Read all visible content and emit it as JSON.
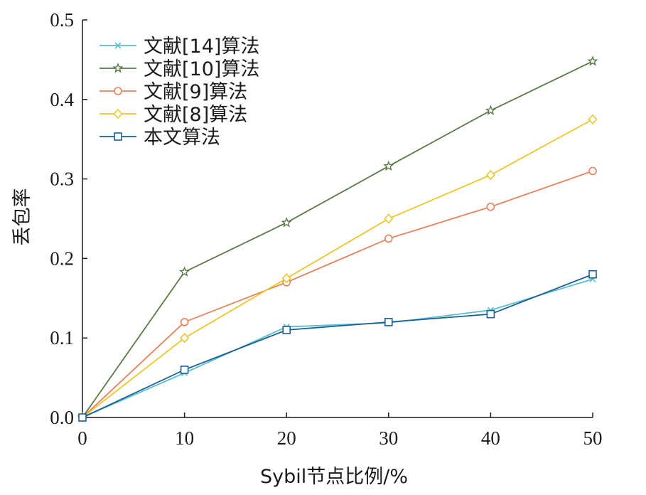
{
  "chart_data": {
    "type": "line",
    "title": "",
    "xlabel": "Sybil节点比例/%",
    "ylabel": "丢包率",
    "x": [
      0,
      10,
      20,
      30,
      40,
      50
    ],
    "xlim": [
      0,
      50
    ],
    "ylim": [
      0,
      0.5
    ],
    "xticks": [
      "0",
      "10",
      "20",
      "30",
      "40",
      "50"
    ],
    "yticks": [
      "0.0",
      "0.1",
      "0.2",
      "0.3",
      "0.4",
      "0.5"
    ],
    "grid": false,
    "legend_position": "top-left",
    "series": [
      {
        "name": "文献[14]算法",
        "color": "#5bbfc9",
        "marker": "x",
        "values": [
          0,
          0.056,
          0.114,
          0.119,
          0.135,
          0.174
        ]
      },
      {
        "name": "文献[10]算法",
        "color": "#5a7a45",
        "marker": "star",
        "values": [
          0,
          0.183,
          0.245,
          0.316,
          0.386,
          0.448
        ]
      },
      {
        "name": "文献[9]算法",
        "color": "#e8805a",
        "marker": "circle",
        "values": [
          0,
          0.12,
          0.17,
          0.225,
          0.265,
          0.31
        ]
      },
      {
        "name": "文献[8]算法",
        "color": "#eec62c",
        "marker": "diamond",
        "values": [
          0,
          0.1,
          0.175,
          0.25,
          0.305,
          0.375
        ]
      },
      {
        "name": "本文算法",
        "color": "#1a5f99",
        "marker": "square",
        "values": [
          0,
          0.06,
          0.11,
          0.12,
          0.13,
          0.18
        ]
      }
    ]
  }
}
